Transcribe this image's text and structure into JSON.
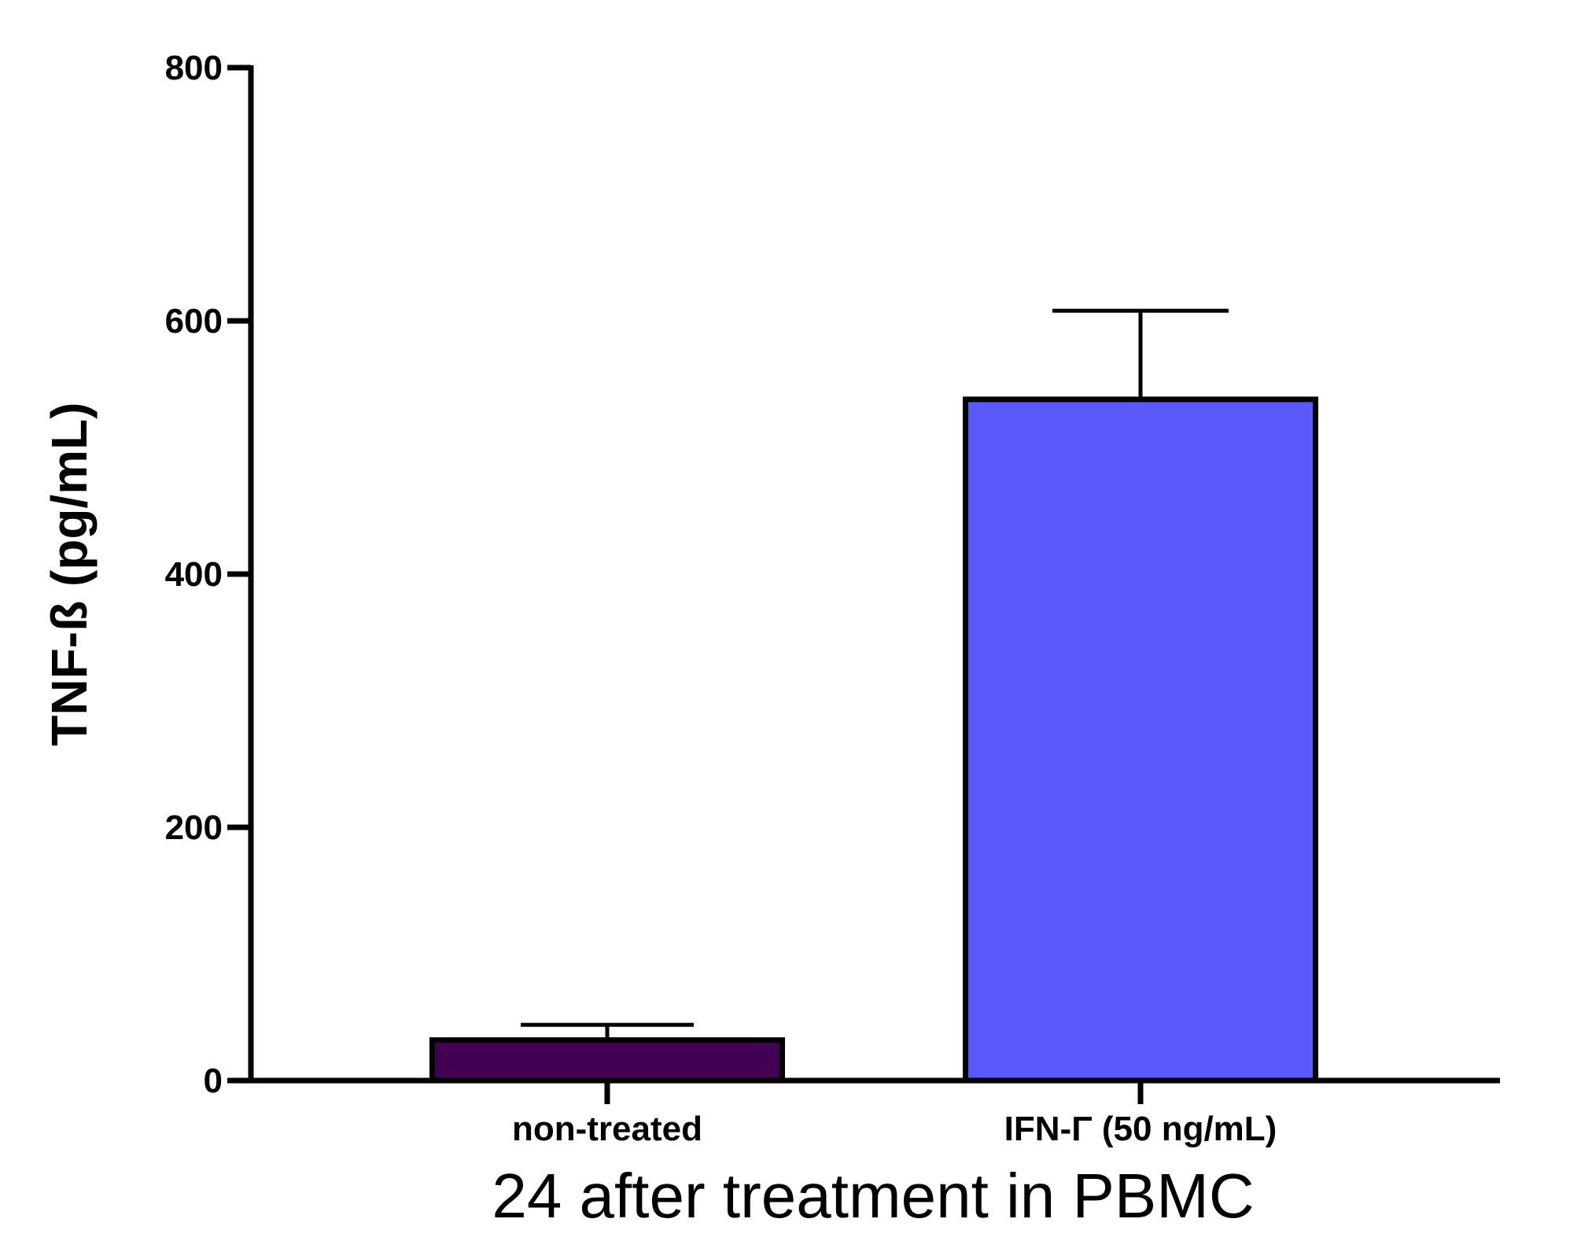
{
  "chart_data": {
    "type": "bar",
    "categories": [
      "non-treated",
      "IFN-Γ (50 ng/mL)"
    ],
    "values": [
      32,
      538
    ],
    "error_bars": [
      12,
      70
    ],
    "colors": [
      "#440154",
      "#5858FB"
    ],
    "edge_color": "#000000",
    "xlabel": "24 after treatment in PBMC",
    "ylabel": "TNF-ß (pg/mL)",
    "ylim": [
      0,
      800
    ],
    "yticks": [
      "0",
      "200",
      "400",
      "600",
      "800"
    ],
    "grid": false,
    "legend": false
  }
}
